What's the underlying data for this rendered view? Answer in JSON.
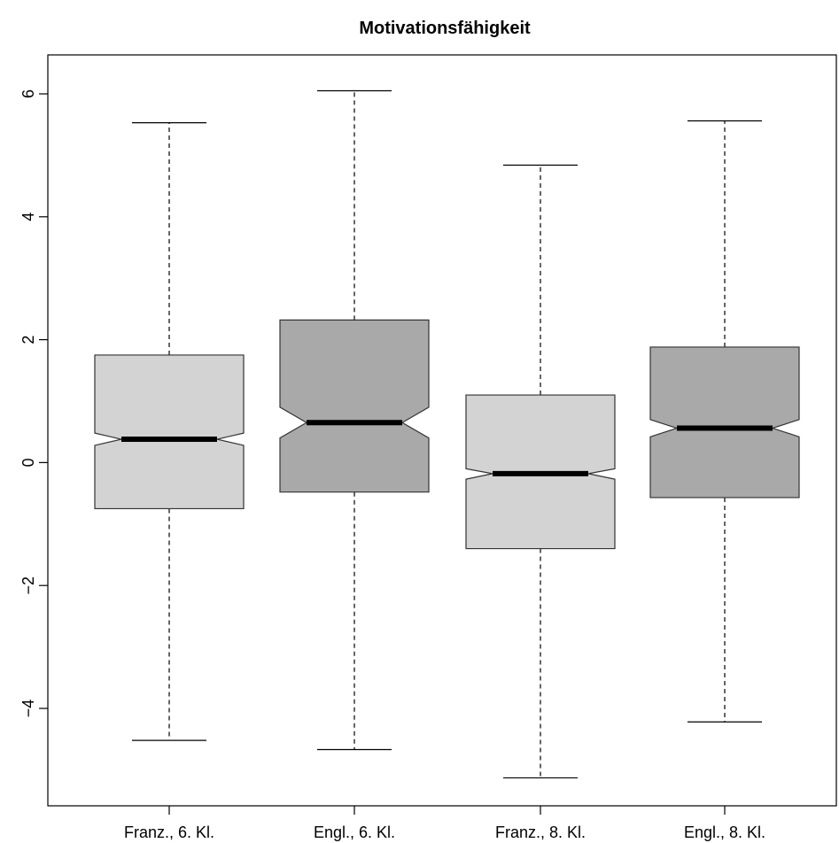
{
  "chart_data": {
    "type": "boxplot",
    "title": "Motivationsfähigkeit",
    "xlabel": "",
    "ylabel": "",
    "ylim": [
      -5.5,
      6.5
    ],
    "yticks": [
      6,
      4,
      2,
      0,
      -2,
      -4
    ],
    "ytick_labels": [
      "6",
      "4",
      "2",
      "0",
      "−2",
      "−4"
    ],
    "notched": true,
    "grid": false,
    "legend": "none",
    "categories": [
      "Franz., 6. Kl.",
      "Engl., 6. Kl.",
      "Franz., 8. Kl.",
      "Engl., 8. Kl."
    ],
    "boxes": [
      {
        "category": "Franz., 6. Kl.",
        "whisker_low": -4.52,
        "q1": -0.75,
        "notch_low": 0.28,
        "median": 0.38,
        "notch_high": 0.48,
        "q3": 1.75,
        "whisker_high": 5.53,
        "color": "#d3d3d3"
      },
      {
        "category": "Engl., 6. Kl.",
        "whisker_low": -4.67,
        "q1": -0.48,
        "notch_low": 0.4,
        "median": 0.65,
        "notch_high": 0.9,
        "q3": 2.32,
        "whisker_high": 6.05,
        "color": "#a9a9a9"
      },
      {
        "category": "Franz., 8. Kl.",
        "whisker_low": -5.13,
        "q1": -1.4,
        "notch_low": -0.27,
        "median": -0.18,
        "notch_high": -0.1,
        "q3": 1.1,
        "whisker_high": 4.84,
        "color": "#d3d3d3"
      },
      {
        "category": "Engl., 8. Kl.",
        "whisker_low": -4.22,
        "q1": -0.57,
        "notch_low": 0.42,
        "median": 0.56,
        "notch_high": 0.7,
        "q3": 1.88,
        "whisker_high": 5.56,
        "color": "#a9a9a9"
      }
    ]
  }
}
